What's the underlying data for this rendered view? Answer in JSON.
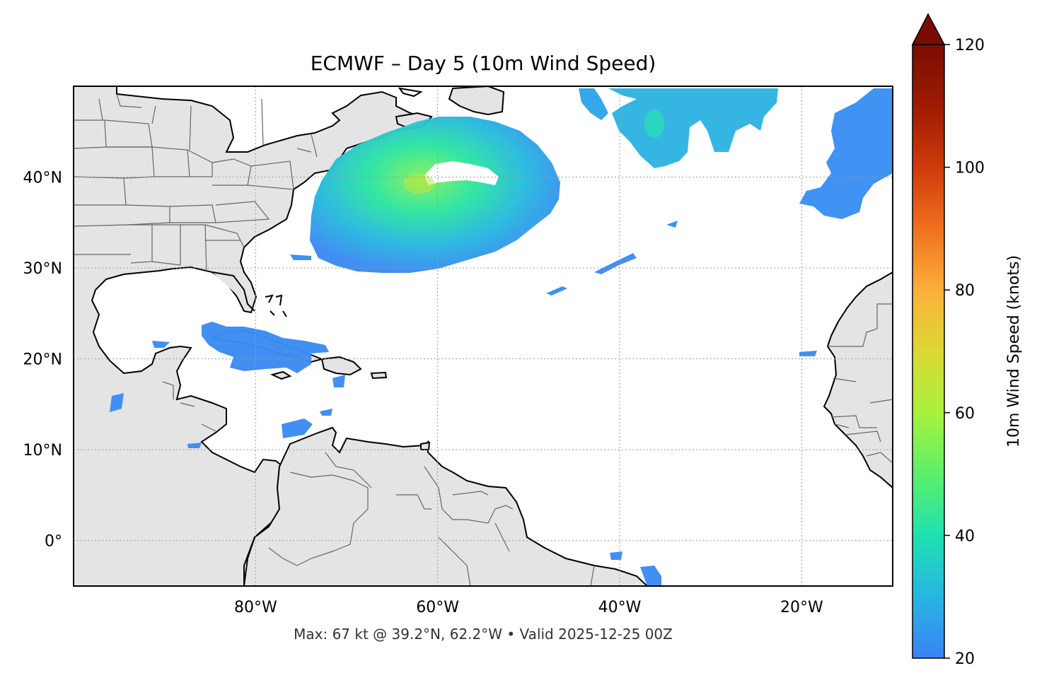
{
  "title": "ECMWF – Day 5 (10m Wind Speed)",
  "footer": "Max: 67 kt @ 39.2°N, 62.2°W • Valid 2025-12-25 00Z",
  "map": {
    "lon_range": [
      -100,
      -10
    ],
    "lat_range": [
      -5,
      50
    ],
    "lon_ticks": [
      {
        "value": -80,
        "label": "80°W"
      },
      {
        "value": -60,
        "label": "60°W"
      },
      {
        "value": -40,
        "label": "40°W"
      },
      {
        "value": -20,
        "label": "20°W"
      }
    ],
    "lat_ticks": [
      {
        "value": 40,
        "label": "40°N"
      },
      {
        "value": 30,
        "label": "30°N"
      },
      {
        "value": 20,
        "label": "20°N"
      },
      {
        "value": 10,
        "label": "10°N"
      },
      {
        "value": 0,
        "label": "0°"
      }
    ],
    "gridlines": "dotted",
    "land_color": "#e4e4e4",
    "ocean_color": "#ffffff",
    "coastline_color": "#000000",
    "border_color": "#666666"
  },
  "colorbar": {
    "label": "10m Wind Speed (knots)",
    "range": [
      20,
      120
    ],
    "ticks": [
      {
        "value": 120,
        "label": "120"
      },
      {
        "value": 100,
        "label": "100"
      },
      {
        "value": 80,
        "label": "80"
      },
      {
        "value": 60,
        "label": "60"
      },
      {
        "value": 40,
        "label": "40"
      },
      {
        "value": 20,
        "label": "20"
      }
    ],
    "extend": "max",
    "colors": [
      "#3b82f6",
      "#26b6e2",
      "#1fe0b0",
      "#5cf06a",
      "#a8f23d",
      "#dcd834",
      "#fbb03a",
      "#f0701f",
      "#cf3a0b",
      "#9e1a03",
      "#6e0a02"
    ]
  },
  "max_wind": {
    "value_kt": 67,
    "lat": 39.2,
    "lon": -62.2,
    "valid": "2025-12-25 00Z"
  }
}
